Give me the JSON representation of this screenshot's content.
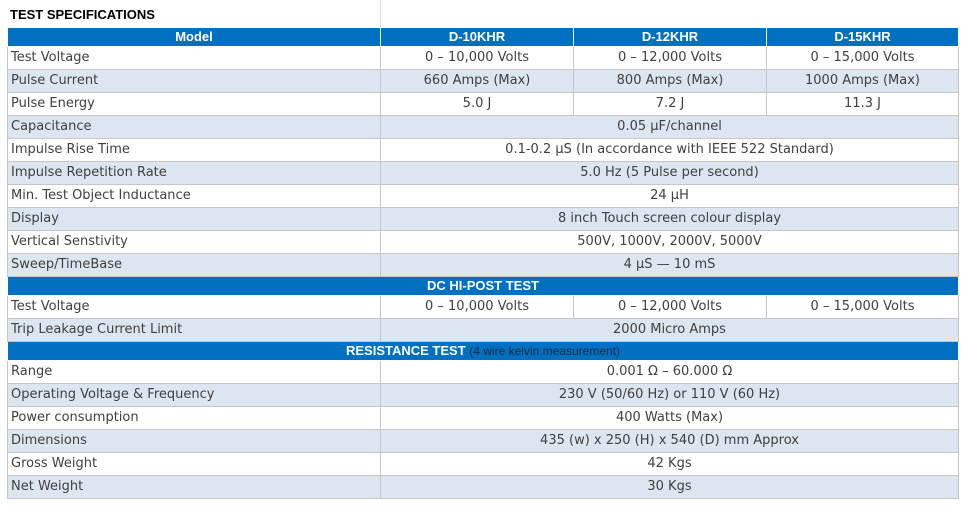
{
  "title": "TEST SPECIFICATIONS",
  "table": {
    "header": [
      "Model",
      "D-10KHR",
      "D-12KHR",
      "D-15KHR"
    ],
    "rows": [
      {
        "label": "Test Voltage",
        "cells": [
          "0 – 10,000 Volts",
          "0 – 12,000 Volts",
          "0 – 15,000 Volts"
        ]
      },
      {
        "label": "Pulse Current",
        "cells": [
          "660 Amps (Max)",
          "800 Amps (Max)",
          "1000 Amps (Max)"
        ]
      },
      {
        "label": "Pulse Energy",
        "cells": [
          "5.0 J",
          "7.2 J",
          "11.3 J"
        ]
      },
      {
        "label": "Capacitance",
        "cells": [
          "0.05 µF/channel"
        ]
      },
      {
        "label": "Impulse Rise Time",
        "cells": [
          "0.1-0.2 µS (In accordance with IEEE 522 Standard)"
        ]
      },
      {
        "label": "Impulse Repetition Rate",
        "cells": [
          "5.0 Hz (5 Pulse per second)"
        ]
      },
      {
        "label": "Min. Test Object Inductance",
        "cells": [
          "24 µH"
        ]
      },
      {
        "label": "Display",
        "cells": [
          "8 inch Touch screen colour display"
        ]
      },
      {
        "label": "Vertical Senstivity",
        "cells": [
          "500V, 1000V, 2000V, 5000V"
        ]
      },
      {
        "label": "Sweep/TimeBase",
        "cells": [
          "4 µS — 10 mS"
        ]
      },
      {
        "section": "DC HI-POST TEST"
      },
      {
        "label": "Test Voltage",
        "cells": [
          "0 – 10,000 Volts",
          "0 – 12,000 Volts",
          "0 – 15,000 Volts"
        ]
      },
      {
        "label": "Trip Leakage Current Limit",
        "cells": [
          "2000 Micro Amps"
        ]
      },
      {
        "section": "RESISTANCE TEST",
        "note": "(4 wire kelvin measurement)"
      },
      {
        "label": "Range",
        "cells": [
          "0.001 Ω – 60.000 Ω"
        ]
      },
      {
        "label": "Operating Voltage & Frequency",
        "cells": [
          "230 V (50/60 Hz) or 110 V (60 Hz)"
        ]
      },
      {
        "label": "Power consumption",
        "cells": [
          "400 Watts (Max)"
        ]
      },
      {
        "label": "Dimensions",
        "cells": [
          "435 (w) x 250 (H) x 540 (D) mm Approx"
        ]
      },
      {
        "label": "Gross Weight",
        "cells": [
          "42 Kgs"
        ]
      },
      {
        "label": "Net Weight",
        "cells": [
          "30 Kgs"
        ]
      }
    ]
  }
}
